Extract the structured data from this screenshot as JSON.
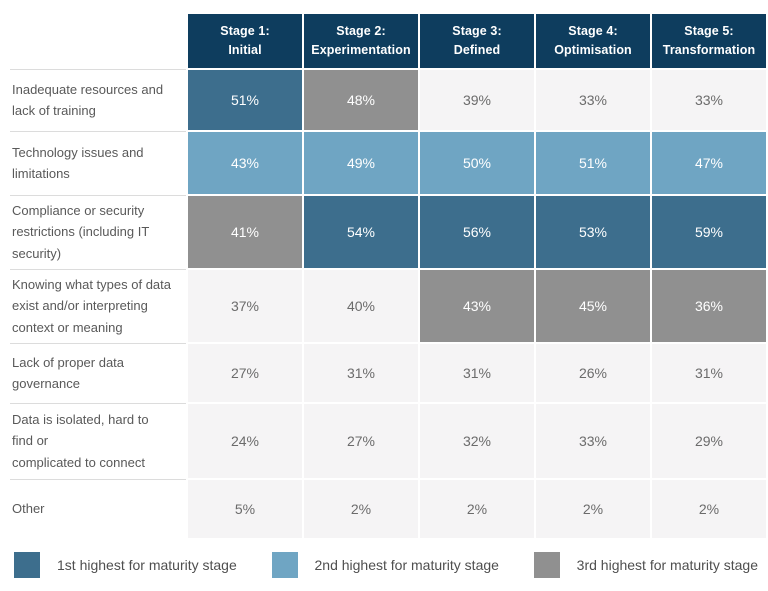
{
  "colors": {
    "header": "#0e3d5e",
    "first": "#3d6e8d",
    "second": "#6fa5c3",
    "third": "#909090",
    "cell_bg": "#f5f4f5",
    "border": "#dcdcdc"
  },
  "table": {
    "columns": [
      "Stage 1:\nInitial",
      "Stage 2:\nExperimentation",
      "Stage 3:\nDefined",
      "Stage 4:\nOptimisation",
      "Stage 5:\nTransformation"
    ],
    "rows": [
      {
        "label": "Inadequate resources and\nlack of training",
        "values": [
          "51%",
          "48%",
          "39%",
          "33%",
          "33%"
        ],
        "ranks": [
          "first",
          "third",
          "none",
          "none",
          "none"
        ]
      },
      {
        "label": "Technology issues and\nlimitations",
        "values": [
          "43%",
          "49%",
          "50%",
          "51%",
          "47%"
        ],
        "ranks": [
          "second",
          "second",
          "second",
          "second",
          "second"
        ]
      },
      {
        "label": "Compliance or security\nrestrictions (including IT\nsecurity)",
        "values": [
          "41%",
          "54%",
          "56%",
          "53%",
          "59%"
        ],
        "ranks": [
          "third",
          "first",
          "first",
          "first",
          "first"
        ]
      },
      {
        "label": "Knowing what types of data\nexist and/or interpreting\ncontext or meaning",
        "values": [
          "37%",
          "40%",
          "43%",
          "45%",
          "36%"
        ],
        "ranks": [
          "none",
          "none",
          "third",
          "third",
          "third"
        ]
      },
      {
        "label": "Lack of proper data\ngovernance",
        "values": [
          "27%",
          "31%",
          "31%",
          "26%",
          "31%"
        ],
        "ranks": [
          "none",
          "none",
          "none",
          "none",
          "none"
        ]
      },
      {
        "label": "Data is isolated, hard to\nfind or\ncomplicated to connect",
        "values": [
          "24%",
          "27%",
          "32%",
          "33%",
          "29%"
        ],
        "ranks": [
          "none",
          "none",
          "none",
          "none",
          "none"
        ]
      },
      {
        "label": "Other",
        "values": [
          "5%",
          "2%",
          "2%",
          "2%",
          "2%"
        ],
        "ranks": [
          "none",
          "none",
          "none",
          "none",
          "none"
        ]
      }
    ]
  },
  "legend": {
    "items": [
      {
        "label": "1st highest for maturity stage",
        "rank": "first"
      },
      {
        "label": "2nd highest for maturity stage",
        "rank": "second"
      },
      {
        "label": "3rd highest for maturity stage",
        "rank": "third"
      }
    ]
  },
  "chart_data": {
    "type": "heatmap",
    "title": "",
    "unit": "%",
    "columns": [
      "Stage 1: Initial",
      "Stage 2: Experimentation",
      "Stage 3: Defined",
      "Stage 4: Optimisation",
      "Stage 5: Transformation"
    ],
    "row_labels": [
      "Inadequate resources and lack of training",
      "Technology issues and limitations",
      "Compliance or security restrictions (including IT security)",
      "Knowing what types of data exist and/or interpreting context or meaning",
      "Lack of proper data governance",
      "Data is isolated, hard to find or complicated to connect",
      "Other"
    ],
    "values": [
      [
        51,
        48,
        39,
        33,
        33
      ],
      [
        43,
        49,
        50,
        51,
        47
      ],
      [
        41,
        54,
        56,
        53,
        59
      ],
      [
        37,
        40,
        43,
        45,
        36
      ],
      [
        27,
        31,
        31,
        26,
        31
      ],
      [
        24,
        27,
        32,
        33,
        29
      ],
      [
        5,
        2,
        2,
        2,
        2
      ]
    ],
    "highlight_ranks": [
      [
        "1st",
        "3rd",
        null,
        null,
        null
      ],
      [
        "2nd",
        "2nd",
        "2nd",
        "2nd",
        "2nd"
      ],
      [
        "3rd",
        "1st",
        "1st",
        "1st",
        "1st"
      ],
      [
        null,
        null,
        "3rd",
        "3rd",
        "3rd"
      ],
      [
        null,
        null,
        null,
        null,
        null
      ],
      [
        null,
        null,
        null,
        null,
        null
      ],
      [
        null,
        null,
        null,
        null,
        null
      ]
    ],
    "legend": [
      "1st highest for maturity stage",
      "2nd highest for maturity stage",
      "3rd highest for maturity stage"
    ],
    "legend_position": "bottom",
    "grid": false
  }
}
